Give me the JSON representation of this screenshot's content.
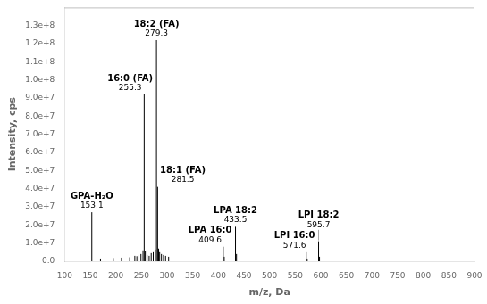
{
  "chart_data": {
    "type": "stem",
    "xlabel": "m/z, Da",
    "ylabel": "Intensity, cps",
    "x": [
      153.1,
      170.0,
      195.0,
      211.0,
      227.0,
      237.0,
      241.0,
      245.0,
      249.0,
      253.0,
      255.3,
      257.5,
      261.0,
      265.0,
      269.0,
      273.0,
      277.0,
      279.3,
      281.5,
      283.5,
      285.5,
      289.0,
      293.0,
      297.0,
      303.0,
      409.6,
      411.5,
      433.5,
      435.5,
      571.6,
      573.5,
      595.7,
      597.5
    ],
    "values": [
      27000000.0,
      1500000.0,
      1800000.0,
      2000000.0,
      2200000.0,
      3000000.0,
      2800000.0,
      3500000.0,
      4000000.0,
      6000000.0,
      92000000.0,
      5500000.0,
      3500000.0,
      3000000.0,
      4500000.0,
      5000000.0,
      6500000.0,
      122000000.0,
      41000000.0,
      7000000.0,
      5000000.0,
      4000000.0,
      3500000.0,
      3000000.0,
      2500000.0,
      8000000.0,
      2500000.0,
      19000000.0,
      4000000.0,
      5000000.0,
      1500000.0,
      11000000.0,
      2500000.0
    ],
    "color": "#000000",
    "xlim": [
      100,
      900
    ],
    "ylim": [
      0,
      140000000.0
    ],
    "xticks": [
      100,
      150,
      200,
      250,
      300,
      350,
      400,
      450,
      500,
      550,
      600,
      650,
      700,
      750,
      800,
      850,
      900
    ],
    "yticks": [
      {
        "value": 0,
        "label": "0.0"
      },
      {
        "value": 10000000.0,
        "label": "1.0e+7"
      },
      {
        "value": 20000000.0,
        "label": "2.0e+7"
      },
      {
        "value": 30000000.0,
        "label": "3.0e+7"
      },
      {
        "value": 40000000.0,
        "label": "4.0e+7"
      },
      {
        "value": 50000000.0,
        "label": "5.0e+7"
      },
      {
        "value": 60000000.0,
        "label": "6.0e+7"
      },
      {
        "value": 70000000.0,
        "label": "7.0e+7"
      },
      {
        "value": 80000000.0,
        "label": "8.0e+7"
      },
      {
        "value": 90000000.0,
        "label": "9.0e+7"
      },
      {
        "value": 100000000.0,
        "label": "1.0e+8"
      },
      {
        "value": 110000000.0,
        "label": "1.1e+8"
      },
      {
        "value": 120000000.0,
        "label": "1.2e+8"
      },
      {
        "value": 130000000.0,
        "label": "1.3e+8"
      }
    ],
    "grid": false,
    "annotations": [
      {
        "x": 153.1,
        "y": 27000000.0,
        "name": "GPA-H₂O",
        "label": "153.1"
      },
      {
        "x": 255.3,
        "y": 92000000.0,
        "name": "16:0 (FA)",
        "label": "255.3"
      },
      {
        "x": 279.3,
        "y": 122000000.0,
        "name": "18:2 (FA)",
        "label": "279.3"
      },
      {
        "x": 281.5,
        "y": 41000000.0,
        "name": "18:1 (FA)",
        "label": "281.5"
      },
      {
        "x": 409.6,
        "y": 8000000.0,
        "name": "LPA 16:0",
        "label": "409.6"
      },
      {
        "x": 433.5,
        "y": 19000000.0,
        "name": "LPA 18:2",
        "label": "433.5"
      },
      {
        "x": 571.6,
        "y": 5000000.0,
        "name": "LPI 16:0",
        "label": "571.6"
      },
      {
        "x": 595.7,
        "y": 11000000.0,
        "name": "LPI 18:2",
        "label": "595.7"
      }
    ]
  }
}
